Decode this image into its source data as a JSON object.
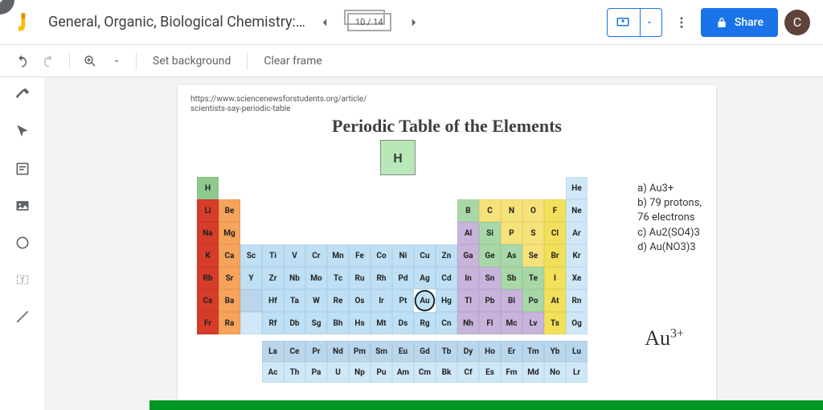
{
  "header": {
    "title": "General, Organic, Biological Chemistry:…",
    "page_indicator": "10 / 14",
    "share_label": "Share",
    "avatar_letter": "C"
  },
  "toolbar": {
    "set_bg": "Set background",
    "clear_frame": "Clear frame"
  },
  "slide": {
    "source_line1": "https://www.sciencenewsforstudents.org/article/",
    "source_line2": "scientists-say-periodic-table",
    "title": "Periodic Table of the Elements",
    "annotations": {
      "a": "a) Au3+",
      "b1": "b) 79 protons,",
      "b2": "76 electrons",
      "c": "c) Au2(SO4)3",
      "d": "d) Au(NO3)3"
    },
    "handwritten": {
      "base": "Au",
      "sup": "3+"
    },
    "legend_symbol": "H"
  },
  "colors": {
    "h": "#8ec98e",
    "alk": "#d63c2a",
    "aearth": "#f6a35b",
    "tm": "#bfe0f4",
    "pt_metal": "#c8b4db",
    "metalloid": "#a8d8a8",
    "nonmetal": "#f5e27a",
    "halogen": "#f2e05a",
    "noble": "#cfe8f7",
    "lan": "#b9d6ed",
    "act": "#cfe8f7",
    "circled": "#bfe0f4"
  },
  "periodic": {
    "rows": [
      [
        {
          "s": "H",
          "c": "h"
        },
        null,
        null,
        null,
        null,
        null,
        null,
        null,
        null,
        null,
        null,
        null,
        null,
        null,
        null,
        null,
        null,
        {
          "s": "He",
          "c": "noble"
        }
      ],
      [
        {
          "s": "Li",
          "c": "alk"
        },
        {
          "s": "Be",
          "c": "aearth"
        },
        null,
        null,
        null,
        null,
        null,
        null,
        null,
        null,
        null,
        null,
        {
          "s": "B",
          "c": "metalloid"
        },
        {
          "s": "C",
          "c": "nonmetal"
        },
        {
          "s": "N",
          "c": "nonmetal"
        },
        {
          "s": "O",
          "c": "nonmetal"
        },
        {
          "s": "F",
          "c": "halogen"
        },
        {
          "s": "Ne",
          "c": "noble"
        }
      ],
      [
        {
          "s": "Na",
          "c": "alk"
        },
        {
          "s": "Mg",
          "c": "aearth"
        },
        null,
        null,
        null,
        null,
        null,
        null,
        null,
        null,
        null,
        null,
        {
          "s": "Al",
          "c": "pt_metal"
        },
        {
          "s": "Si",
          "c": "metalloid"
        },
        {
          "s": "P",
          "c": "nonmetal"
        },
        {
          "s": "S",
          "c": "nonmetal"
        },
        {
          "s": "Cl",
          "c": "halogen"
        },
        {
          "s": "Ar",
          "c": "noble"
        }
      ],
      [
        {
          "s": "K",
          "c": "alk"
        },
        {
          "s": "Ca",
          "c": "aearth"
        },
        {
          "s": "Sc",
          "c": "tm"
        },
        {
          "s": "Ti",
          "c": "tm"
        },
        {
          "s": "V",
          "c": "tm"
        },
        {
          "s": "Cr",
          "c": "tm"
        },
        {
          "s": "Mn",
          "c": "tm"
        },
        {
          "s": "Fe",
          "c": "tm"
        },
        {
          "s": "Co",
          "c": "tm"
        },
        {
          "s": "Ni",
          "c": "tm"
        },
        {
          "s": "Cu",
          "c": "tm"
        },
        {
          "s": "Zn",
          "c": "tm"
        },
        {
          "s": "Ga",
          "c": "pt_metal"
        },
        {
          "s": "Ge",
          "c": "metalloid"
        },
        {
          "s": "As",
          "c": "metalloid"
        },
        {
          "s": "Se",
          "c": "nonmetal"
        },
        {
          "s": "Br",
          "c": "halogen"
        },
        {
          "s": "Kr",
          "c": "noble"
        }
      ],
      [
        {
          "s": "Rb",
          "c": "alk"
        },
        {
          "s": "Sr",
          "c": "aearth"
        },
        {
          "s": "Y",
          "c": "tm"
        },
        {
          "s": "Zr",
          "c": "tm"
        },
        {
          "s": "Nb",
          "c": "tm"
        },
        {
          "s": "Mo",
          "c": "tm"
        },
        {
          "s": "Tc",
          "c": "tm"
        },
        {
          "s": "Ru",
          "c": "tm"
        },
        {
          "s": "Rh",
          "c": "tm"
        },
        {
          "s": "Pd",
          "c": "tm"
        },
        {
          "s": "Ag",
          "c": "tm"
        },
        {
          "s": "Cd",
          "c": "tm"
        },
        {
          "s": "In",
          "c": "pt_metal"
        },
        {
          "s": "Sn",
          "c": "pt_metal"
        },
        {
          "s": "Sb",
          "c": "metalloid"
        },
        {
          "s": "Te",
          "c": "metalloid"
        },
        {
          "s": "I",
          "c": "halogen"
        },
        {
          "s": "Xe",
          "c": "noble"
        }
      ],
      [
        {
          "s": "Cs",
          "c": "alk"
        },
        {
          "s": "Ba",
          "c": "aearth"
        },
        {
          "s": "",
          "c": "lan"
        },
        {
          "s": "Hf",
          "c": "tm"
        },
        {
          "s": "Ta",
          "c": "tm"
        },
        {
          "s": "W",
          "c": "tm"
        },
        {
          "s": "Re",
          "c": "tm"
        },
        {
          "s": "Os",
          "c": "tm"
        },
        {
          "s": "Ir",
          "c": "tm"
        },
        {
          "s": "Pt",
          "c": "tm"
        },
        {
          "s": "Au",
          "c": "tm",
          "circle": true
        },
        {
          "s": "Hg",
          "c": "tm"
        },
        {
          "s": "Tl",
          "c": "pt_metal"
        },
        {
          "s": "Pb",
          "c": "pt_metal"
        },
        {
          "s": "Bi",
          "c": "pt_metal"
        },
        {
          "s": "Po",
          "c": "metalloid"
        },
        {
          "s": "At",
          "c": "halogen"
        },
        {
          "s": "Rn",
          "c": "noble"
        }
      ],
      [
        {
          "s": "Fr",
          "c": "alk"
        },
        {
          "s": "Ra",
          "c": "aearth"
        },
        {
          "s": "",
          "c": "act"
        },
        {
          "s": "Rf",
          "c": "tm"
        },
        {
          "s": "Db",
          "c": "tm"
        },
        {
          "s": "Sg",
          "c": "tm"
        },
        {
          "s": "Bh",
          "c": "tm"
        },
        {
          "s": "Hs",
          "c": "tm"
        },
        {
          "s": "Mt",
          "c": "tm"
        },
        {
          "s": "Ds",
          "c": "tm"
        },
        {
          "s": "Rg",
          "c": "tm"
        },
        {
          "s": "Cn",
          "c": "tm"
        },
        {
          "s": "Nh",
          "c": "pt_metal"
        },
        {
          "s": "Fl",
          "c": "pt_metal"
        },
        {
          "s": "Mc",
          "c": "pt_metal"
        },
        {
          "s": "Lv",
          "c": "pt_metal"
        },
        {
          "s": "Ts",
          "c": "halogen"
        },
        {
          "s": "Og",
          "c": "noble"
        }
      ]
    ],
    "lanth": [
      "La",
      "Ce",
      "Pr",
      "Nd",
      "Pm",
      "Sm",
      "Eu",
      "Gd",
      "Tb",
      "Dy",
      "Ho",
      "Er",
      "Tm",
      "Yb",
      "Lu"
    ],
    "act": [
      "Ac",
      "Th",
      "Pa",
      "U",
      "Np",
      "Pu",
      "Am",
      "Cm",
      "Bk",
      "Cf",
      "Es",
      "Fm",
      "Md",
      "No",
      "Lr"
    ]
  }
}
